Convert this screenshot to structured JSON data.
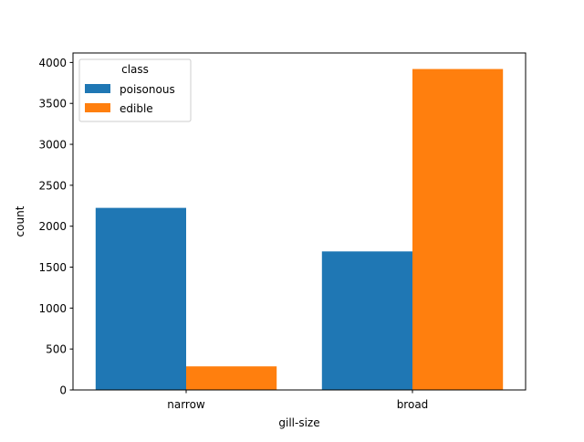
{
  "chart_data": {
    "type": "bar",
    "categories": [
      "narrow",
      "broad"
    ],
    "series": [
      {
        "name": "poisonous",
        "values": [
          2224,
          1692
        ],
        "color": "#1f77b4"
      },
      {
        "name": "edible",
        "values": [
          288,
          3920
        ],
        "color": "#ff7f0e"
      }
    ],
    "xlabel": "gill-size",
    "ylabel": "count",
    "ylim": [
      0,
      4116
    ],
    "yticks": [
      0,
      500,
      1000,
      1500,
      2000,
      2500,
      3000,
      3500,
      4000
    ],
    "legend": {
      "title": "class",
      "placement": "top-left"
    },
    "grid": false
  }
}
